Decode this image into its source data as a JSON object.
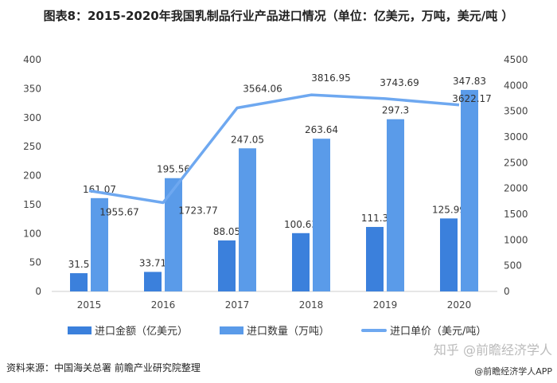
{
  "title": "图表8：2015-2020年我国乳制品行业产品进口情况（单位：亿美元，万吨，美元/吨 ）",
  "chart_data": {
    "type": "bar",
    "title": "图表8：2015-2020年我国乳制品行业产品进口情况（单位：亿美元，万吨，美元/吨 ）",
    "categories": [
      "2015",
      "2016",
      "2017",
      "2018",
      "2019",
      "2020"
    ],
    "series": [
      {
        "name": "进口金额（亿美元）",
        "type": "bar",
        "axis": "left",
        "color": "#3b80dc",
        "values": [
          31.5,
          33.71,
          88.05,
          100.63,
          111.3,
          125.99
        ],
        "labels": [
          "31.5",
          "33.71",
          "88.05",
          "100.63",
          "111.3",
          "125.99"
        ]
      },
      {
        "name": "进口数量（万吨）",
        "type": "bar",
        "axis": "left",
        "color": "#5a9be9",
        "values": [
          161.07,
          195.56,
          247.05,
          263.64,
          297.3,
          347.83
        ],
        "labels": [
          "161.07",
          "195.56",
          "247.05",
          "263.64",
          "297.3",
          "347.83"
        ]
      },
      {
        "name": "进口单价（美元/吨）",
        "type": "line",
        "axis": "right",
        "color": "#6ea8f0",
        "values": [
          1955.67,
          1723.77,
          3564.06,
          3816.95,
          3743.69,
          3622.17
        ],
        "labels": [
          "1955.67",
          "1723.77",
          "3564.06",
          "3816.95",
          "3743.69",
          "3622.17"
        ]
      }
    ],
    "ylim": [
      0,
      400
    ],
    "yticks": [
      "0",
      "50",
      "100",
      "150",
      "200",
      "250",
      "300",
      "350",
      "400"
    ],
    "y2lim": [
      0,
      4500
    ],
    "y2ticks": [
      "0",
      "500",
      "1000",
      "1500",
      "2000",
      "2500",
      "3000",
      "3500",
      "4000",
      "4500"
    ],
    "grid": false,
    "legend": "bottom"
  },
  "source": "资料来源：中国海关总署 前瞻产业研究院整理",
  "watermark": "知乎 @前瞻经济学人",
  "watermark2": "@前瞻经济学人APP"
}
